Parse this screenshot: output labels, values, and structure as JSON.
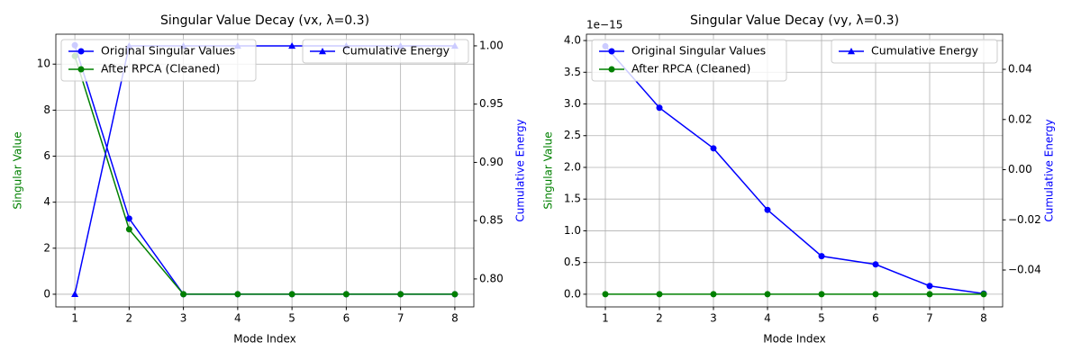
{
  "chart_data": [
    {
      "type": "line",
      "title": "Singular Value Decay (vx, λ=0.3)",
      "xlabel": "Mode Index",
      "ylabel": "Singular Value",
      "y2label": "Cumulative Energy",
      "ylabel_color": "green",
      "y2label_color": "blue",
      "x": [
        1,
        2,
        3,
        4,
        5,
        6,
        7,
        8
      ],
      "xlim": [
        0.65,
        8.35
      ],
      "xticks": [
        1,
        2,
        3,
        4,
        5,
        6,
        7,
        8
      ],
      "ylim": [
        -0.55,
        11.3
      ],
      "yticks": [
        0,
        2,
        4,
        6,
        8,
        10
      ],
      "y2lim": [
        0.776,
        1.01
      ],
      "y2ticks": [
        {
          "value": 0.8,
          "label": "0.80"
        },
        {
          "value": 0.85,
          "label": "0.85"
        },
        {
          "value": 0.9,
          "label": "0.90"
        },
        {
          "value": 0.95,
          "label": "0.95"
        },
        {
          "value": 1.0,
          "label": "1.00"
        }
      ],
      "grid": true,
      "legend": "upper left",
      "legend2": "upper right",
      "series": [
        {
          "name": "Original Singular Values",
          "color": "blue",
          "marker": "o",
          "values": [
            10.82,
            3.29,
            0,
            0,
            0,
            0,
            0,
            0
          ]
        },
        {
          "name": "After RPCA (Cleaned)",
          "color": "green",
          "marker": "o",
          "values": [
            10.35,
            2.82,
            0,
            0,
            0,
            0,
            0,
            0
          ]
        },
        {
          "name": "Cumulative Energy",
          "color": "blue",
          "marker": "^",
          "axis": "y2",
          "values": [
            0.787,
            1.0,
            1.0,
            1.0,
            1.0,
            1.0,
            1.0,
            1.0
          ]
        }
      ]
    },
    {
      "type": "line",
      "title": "Singular Value Decay (vy, λ=0.3)",
      "xlabel": "Mode Index",
      "ylabel": "Singular Value",
      "y2label": "Cumulative Energy",
      "ylabel_color": "green",
      "y2label_color": "blue",
      "y_offset_text": "1e−15",
      "x": [
        1,
        2,
        3,
        4,
        5,
        6,
        7,
        8
      ],
      "xlim": [
        0.65,
        8.35
      ],
      "xticks": [
        1,
        2,
        3,
        4,
        5,
        6,
        7,
        8
      ],
      "ylim": [
        -0.2,
        4.1
      ],
      "yticks": [
        {
          "value": 0,
          "label": "0.0"
        },
        {
          "value": 0.5,
          "label": "0.5"
        },
        {
          "value": 1,
          "label": "1.0"
        },
        {
          "value": 1.5,
          "label": "1.5"
        },
        {
          "value": 2,
          "label": "2.0"
        },
        {
          "value": 2.5,
          "label": "2.5"
        },
        {
          "value": 3,
          "label": "3.0"
        },
        {
          "value": 3.5,
          "label": "3.5"
        },
        {
          "value": 4,
          "label": "4.0"
        }
      ],
      "y2lim": [
        -0.0547,
        0.054
      ],
      "y2ticks": [
        {
          "value": -0.04,
          "label": "−0.04"
        },
        {
          "value": -0.02,
          "label": "−0.02"
        },
        {
          "value": 0,
          "label": "0.00"
        },
        {
          "value": 0.02,
          "label": "0.02"
        },
        {
          "value": 0.04,
          "label": "0.04"
        }
      ],
      "grid": true,
      "legend": "upper left",
      "legend2": "upper right",
      "series": [
        {
          "name": "Original Singular Values",
          "color": "blue",
          "marker": "o",
          "values": [
            3.91,
            2.94,
            2.3,
            1.33,
            0.6,
            0.47,
            0.13,
            0.01
          ]
        },
        {
          "name": "After RPCA (Cleaned)",
          "color": "green",
          "marker": "o",
          "values": [
            0,
            0,
            0,
            0,
            0,
            0,
            0,
            0
          ]
        },
        {
          "name": "Cumulative Energy",
          "color": "blue",
          "marker": "^",
          "axis": "y2",
          "values": [
            null,
            null,
            null,
            null,
            null,
            null,
            null,
            null
          ]
        }
      ]
    }
  ]
}
